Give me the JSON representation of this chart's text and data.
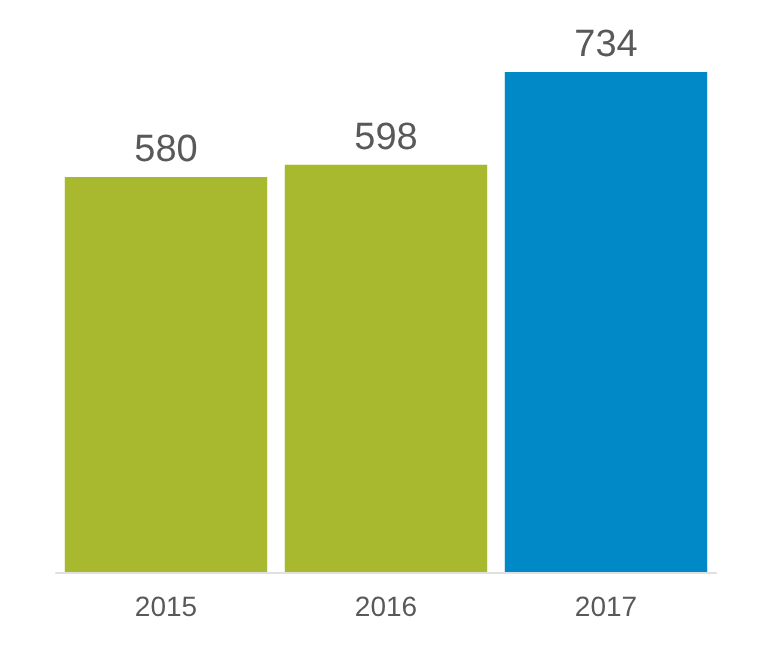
{
  "chart_data": {
    "type": "bar",
    "categories": [
      "2015",
      "2016",
      "2017"
    ],
    "values": [
      580,
      598,
      734
    ],
    "colors": [
      "#a8b92f",
      "#a8b92f",
      "#0088c7"
    ],
    "data_labels": true
  }
}
